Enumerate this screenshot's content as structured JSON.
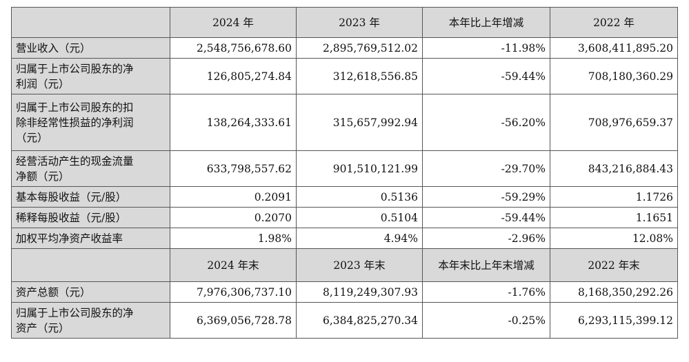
{
  "header1": [
    "2024 年",
    "2023 年",
    "本年比上年增减",
    "2022 年"
  ],
  "header2": [
    "2024 年末",
    "2023 年末",
    "本年末比上年末增减",
    "2022 年末"
  ],
  "rows1": [
    {
      "label_lines": [
        "营业收入（元）"
      ],
      "values": [
        "2,548,756,678.60",
        "2,895,769,512.02",
        "-11.98%",
        "3,608,411,895.20"
      ]
    },
    {
      "label_lines": [
        "归属于上市公司股东的净",
        "利润（元）"
      ],
      "values": [
        "126,805,274.84",
        "312,618,556.85",
        "-59.44%",
        "708,180,360.29"
      ]
    },
    {
      "label_lines": [
        "归属于上市公司股东的扣",
        "除非经常性损益的净利润",
        "（元）"
      ],
      "values": [
        "138,264,333.61",
        "315,657,992.94",
        "-56.20%",
        "708,976,659.37"
      ]
    },
    {
      "label_lines": [
        "经营活动产生的现金流量",
        "净额（元）"
      ],
      "values": [
        "633,798,557.62",
        "901,510,121.99",
        "-29.70%",
        "843,216,884.43"
      ]
    },
    {
      "label_lines": [
        "基本每股收益（元/股）"
      ],
      "values": [
        "0.2091",
        "0.5136",
        "-59.29%",
        "1.1726"
      ]
    },
    {
      "label_lines": [
        "稀释每股收益（元/股）"
      ],
      "values": [
        "0.2070",
        "0.5104",
        "-59.44%",
        "1.1651"
      ]
    },
    {
      "label_lines": [
        "加权平均净资产收益率"
      ],
      "values": [
        "1.98%",
        "4.94%",
        "-2.96%",
        "12.08%"
      ]
    }
  ],
  "rows2": [
    {
      "label_lines": [
        "资产总额（元）"
      ],
      "values": [
        "7,976,306,737.10",
        "8,119,249,307.93",
        "-1.76%",
        "8,168,350,292.26"
      ]
    },
    {
      "label_lines": [
        "归属于上市公司股东的净",
        "资产（元）"
      ],
      "values": [
        "6,369,056,728.78",
        "6,384,825,270.34",
        "-0.25%",
        "6,293,115,399.12"
      ]
    }
  ]
}
